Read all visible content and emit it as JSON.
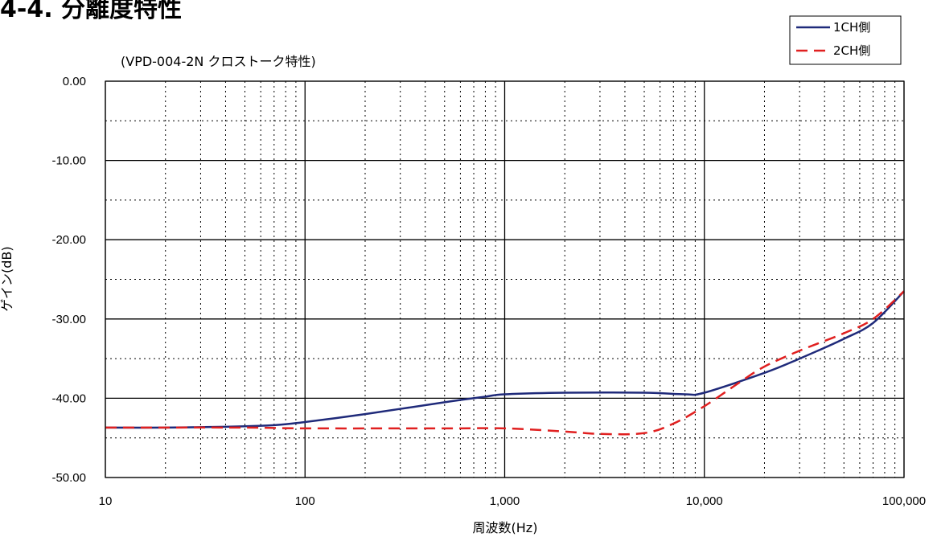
{
  "page": {
    "title": "4-4. 分離度特性"
  },
  "chart_data": {
    "type": "line",
    "subtitle": "(VPD-004-2N クロストーク特性)",
    "xlabel": "周波数(Hz)",
    "ylabel": "ゲイン(dB)",
    "x_scale": "log",
    "xlim": [
      10,
      100000
    ],
    "ylim": [
      -50,
      0
    ],
    "x_ticks": [
      10,
      100,
      1000,
      10000,
      100000
    ],
    "x_tick_labels": [
      "10",
      "100",
      "1,000",
      "10,000",
      "100,000"
    ],
    "y_ticks": [
      0,
      -10,
      -20,
      -30,
      -40,
      -50
    ],
    "y_tick_labels": [
      "0.00",
      "-10.00",
      "-20.00",
      "-30.00",
      "-40.00",
      "-50.00"
    ],
    "grid": "major solid, minor dotted",
    "legend_position": "top-right",
    "series": [
      {
        "name": "1CH側",
        "color": "#1f2a7a",
        "style": "solid",
        "x": [
          10,
          20,
          40,
          70,
          100,
          200,
          500,
          800,
          1000,
          2000,
          5000,
          8000,
          10000,
          20000,
          30000,
          50000,
          70000,
          100000
        ],
        "y": [
          -43.7,
          -43.7,
          -43.6,
          -43.4,
          -43.0,
          -42.0,
          -40.5,
          -39.8,
          -39.5,
          -39.3,
          -39.3,
          -39.5,
          -39.3,
          -36.8,
          -35.0,
          -32.5,
          -30.5,
          -26.5
        ]
      },
      {
        "name": "2CH側",
        "color": "#e02020",
        "style": "dashed",
        "x": [
          10,
          50,
          100,
          500,
          1000,
          2000,
          3000,
          5000,
          7000,
          10000,
          15000,
          20000,
          30000,
          50000,
          70000,
          100000
        ],
        "y": [
          -43.7,
          -43.7,
          -43.8,
          -43.8,
          -43.8,
          -44.2,
          -44.5,
          -44.4,
          -43.2,
          -41.0,
          -38.0,
          -36.0,
          -34.0,
          -31.8,
          -30.0,
          -26.5
        ]
      }
    ]
  }
}
